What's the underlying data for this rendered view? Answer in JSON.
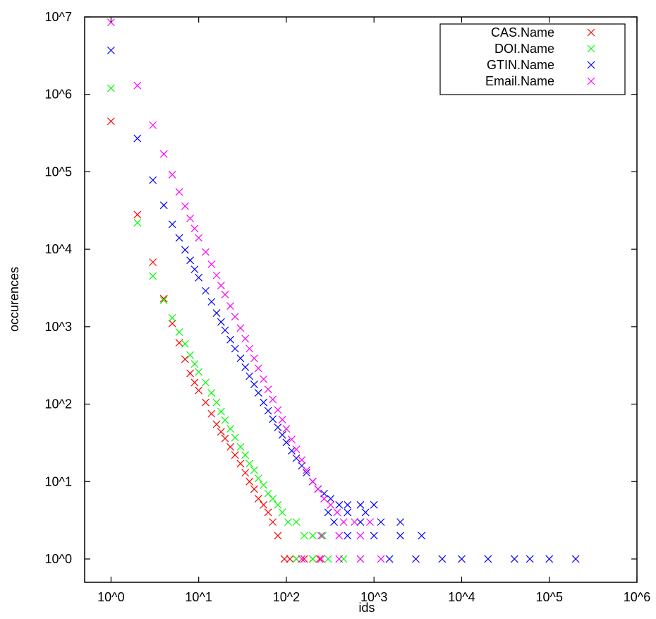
{
  "chart_data": {
    "type": "scatter",
    "title": "",
    "xlabel": "ids",
    "ylabel": "occurences",
    "x_scale": "log",
    "y_scale": "log",
    "xlim": [
      0.5,
      1000000
    ],
    "ylim": [
      0.5,
      10000000
    ],
    "x_ticks": [
      {
        "value": 1,
        "label": "10^0"
      },
      {
        "value": 10,
        "label": "10^1"
      },
      {
        "value": 100,
        "label": "10^2"
      },
      {
        "value": 1000,
        "label": "10^3"
      },
      {
        "value": 10000,
        "label": "10^4"
      },
      {
        "value": 100000,
        "label": "10^5"
      },
      {
        "value": 1000000,
        "label": "10^6"
      }
    ],
    "y_ticks": [
      {
        "value": 1,
        "label": "10^0"
      },
      {
        "value": 10,
        "label": "10^1"
      },
      {
        "value": 100,
        "label": "10^2"
      },
      {
        "value": 1000,
        "label": "10^3"
      },
      {
        "value": 10000,
        "label": "10^4"
      },
      {
        "value": 100000,
        "label": "10^5"
      },
      {
        "value": 1000000,
        "label": "10^6"
      },
      {
        "value": 10000000,
        "label": "10^7"
      }
    ],
    "grid": false,
    "legend_position": "top-right",
    "marker": "x",
    "series": [
      {
        "name": "CAS.Name",
        "color": "#ff0000",
        "points": [
          [
            1,
            450000
          ],
          [
            2,
            28000
          ],
          [
            3,
            6800
          ],
          [
            4,
            2300
          ],
          [
            5,
            1100
          ],
          [
            6,
            620
          ],
          [
            7,
            380
          ],
          [
            8,
            250
          ],
          [
            9,
            190
          ],
          [
            10,
            150
          ],
          [
            12,
            105
          ],
          [
            14,
            75
          ],
          [
            16,
            55
          ],
          [
            18,
            44
          ],
          [
            20,
            36
          ],
          [
            23,
            28
          ],
          [
            26,
            22
          ],
          [
            30,
            17
          ],
          [
            34,
            13
          ],
          [
            38,
            10
          ],
          [
            43,
            8
          ],
          [
            48,
            6
          ],
          [
            55,
            5
          ],
          [
            62,
            4
          ],
          [
            70,
            3
          ],
          [
            80,
            2
          ],
          [
            95,
            1
          ],
          [
            110,
            1
          ],
          [
            130,
            1
          ],
          [
            160,
            1
          ],
          [
            200,
            1
          ],
          [
            240,
            1
          ]
        ]
      },
      {
        "name": "DOI.Name",
        "color": "#00ff00",
        "points": [
          [
            1,
            1200000
          ],
          [
            2,
            22000
          ],
          [
            3,
            4500
          ],
          [
            4,
            2200
          ],
          [
            5,
            1300
          ],
          [
            6,
            850
          ],
          [
            7,
            600
          ],
          [
            8,
            430
          ],
          [
            9,
            330
          ],
          [
            10,
            260
          ],
          [
            12,
            190
          ],
          [
            14,
            140
          ],
          [
            16,
            105
          ],
          [
            18,
            80
          ],
          [
            20,
            62
          ],
          [
            23,
            48
          ],
          [
            26,
            37
          ],
          [
            30,
            28
          ],
          [
            34,
            22
          ],
          [
            38,
            17
          ],
          [
            43,
            14
          ],
          [
            48,
            11
          ],
          [
            55,
            9
          ],
          [
            62,
            7
          ],
          [
            70,
            6
          ],
          [
            80,
            5
          ],
          [
            90,
            4
          ],
          [
            105,
            3
          ],
          [
            130,
            3
          ],
          [
            160,
            2
          ],
          [
            200,
            2
          ],
          [
            260,
            2
          ],
          [
            130,
            1
          ],
          [
            200,
            1
          ],
          [
            300,
            1
          ],
          [
            450,
            1
          ],
          [
            700,
            1
          ]
        ]
      },
      {
        "name": "GTIN.Name",
        "color": "#0000ff",
        "points": [
          [
            1,
            3700000
          ],
          [
            2,
            270000
          ],
          [
            3,
            78000
          ],
          [
            4,
            37000
          ],
          [
            5,
            21000
          ],
          [
            6,
            14000
          ],
          [
            7,
            9800
          ],
          [
            8,
            7200
          ],
          [
            9,
            5500
          ],
          [
            10,
            4300
          ],
          [
            12,
            2900
          ],
          [
            14,
            2100
          ],
          [
            16,
            1500
          ],
          [
            18,
            1150
          ],
          [
            20,
            900
          ],
          [
            23,
            680
          ],
          [
            26,
            520
          ],
          [
            30,
            390
          ],
          [
            34,
            300
          ],
          [
            38,
            230
          ],
          [
            43,
            180
          ],
          [
            48,
            140
          ],
          [
            55,
            105
          ],
          [
            62,
            82
          ],
          [
            70,
            64
          ],
          [
            80,
            50
          ],
          [
            90,
            40
          ],
          [
            100,
            32
          ],
          [
            115,
            25
          ],
          [
            130,
            20
          ],
          [
            150,
            16
          ],
          [
            170,
            13
          ],
          [
            200,
            10
          ],
          [
            230,
            8
          ],
          [
            270,
            7
          ],
          [
            320,
            6
          ],
          [
            400,
            5
          ],
          [
            500,
            5
          ],
          [
            700,
            5
          ],
          [
            1000,
            5
          ],
          [
            300,
            4
          ],
          [
            500,
            4
          ],
          [
            800,
            4
          ],
          [
            350,
            3
          ],
          [
            700,
            3
          ],
          [
            1200,
            3
          ],
          [
            2000,
            3
          ],
          [
            500,
            2
          ],
          [
            1000,
            2
          ],
          [
            2000,
            2
          ],
          [
            3500,
            2
          ],
          [
            1500,
            1
          ],
          [
            3000,
            1
          ],
          [
            6000,
            1
          ],
          [
            10000,
            1
          ],
          [
            20000,
            1
          ],
          [
            40000,
            1
          ],
          [
            60000,
            1
          ],
          [
            100000,
            1
          ],
          [
            200000,
            1
          ]
        ]
      },
      {
        "name": "Email.Name",
        "color": "#ff00ff",
        "points": [
          [
            1,
            8500000
          ],
          [
            2,
            1300000
          ],
          [
            3,
            400000
          ],
          [
            4,
            170000
          ],
          [
            5,
            92000
          ],
          [
            6,
            55000
          ],
          [
            7,
            36000
          ],
          [
            8,
            25000
          ],
          [
            9,
            18500
          ],
          [
            10,
            14000
          ],
          [
            12,
            9200
          ],
          [
            14,
            6400
          ],
          [
            16,
            4600
          ],
          [
            18,
            3400
          ],
          [
            20,
            2600
          ],
          [
            23,
            1850
          ],
          [
            26,
            1350
          ],
          [
            30,
            960
          ],
          [
            34,
            700
          ],
          [
            38,
            520
          ],
          [
            43,
            390
          ],
          [
            48,
            290
          ],
          [
            55,
            210
          ],
          [
            62,
            155
          ],
          [
            70,
            115
          ],
          [
            80,
            84
          ],
          [
            90,
            63
          ],
          [
            100,
            48
          ],
          [
            115,
            35
          ],
          [
            130,
            26
          ],
          [
            150,
            19
          ],
          [
            170,
            14
          ],
          [
            200,
            10
          ],
          [
            230,
            8
          ],
          [
            270,
            6
          ],
          [
            320,
            5
          ],
          [
            380,
            4
          ],
          [
            450,
            3
          ],
          [
            600,
            3
          ],
          [
            900,
            3
          ],
          [
            250,
            2
          ],
          [
            400,
            2
          ],
          [
            700,
            2
          ],
          [
            150,
            1
          ],
          [
            250,
            1
          ],
          [
            400,
            1
          ],
          [
            700,
            1
          ],
          [
            1200,
            1
          ]
        ]
      }
    ]
  }
}
